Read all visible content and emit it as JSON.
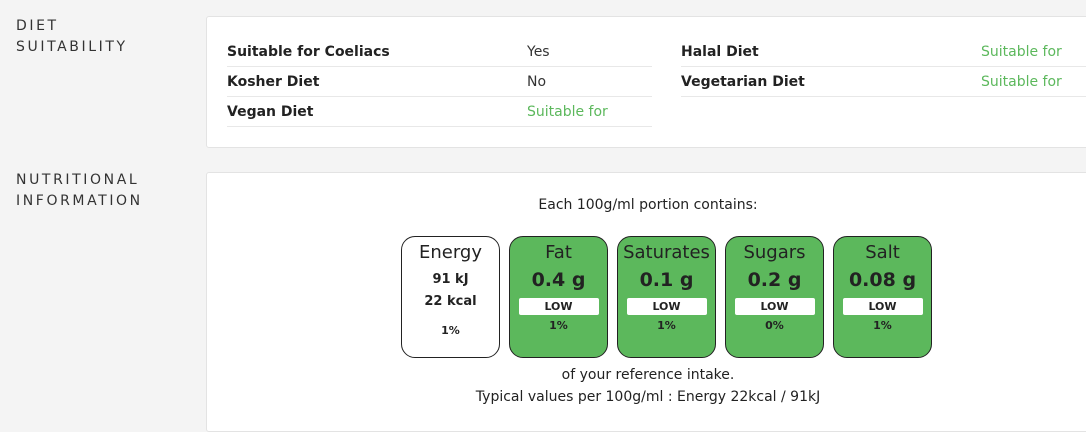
{
  "diet": {
    "label_line1": "DIET",
    "label_line2": "SUITABILITY",
    "left": [
      {
        "name": "Suitable for Coeliacs",
        "value": "Yes"
      },
      {
        "name": "Kosher Diet",
        "value": "No"
      },
      {
        "name": "Vegan Diet",
        "value": "Suitable for"
      }
    ],
    "right": [
      {
        "name": "Halal Diet",
        "value": "Suitable for"
      },
      {
        "name": "Vegetarian Diet",
        "value": "Suitable for"
      }
    ]
  },
  "nutrition": {
    "label_line1": "NUTRITIONAL",
    "label_line2": "INFORMATION",
    "portion_text": "Each 100g/ml portion contains:",
    "energy": {
      "name": "Energy",
      "kj": "91 kJ",
      "kcal": "22 kcal",
      "percent": "1%"
    },
    "nutrients": [
      {
        "name": "Fat",
        "amount": "0.4 g",
        "level": "LOW",
        "percent": "1%"
      },
      {
        "name": "Saturates",
        "amount": "0.1 g",
        "level": "LOW",
        "percent": "1%"
      },
      {
        "name": "Sugars",
        "amount": "0.2 g",
        "level": "LOW",
        "percent": "0%"
      },
      {
        "name": "Salt",
        "amount": "0.08 g",
        "level": "LOW",
        "percent": "1%"
      }
    ],
    "reference_text": "of your reference intake.",
    "typical_text": "Typical values per 100g/ml : Energy 22kcal / 91kJ"
  },
  "colors": {
    "low_green": "#5cb85c",
    "suitable_text": "#5cb85c"
  }
}
